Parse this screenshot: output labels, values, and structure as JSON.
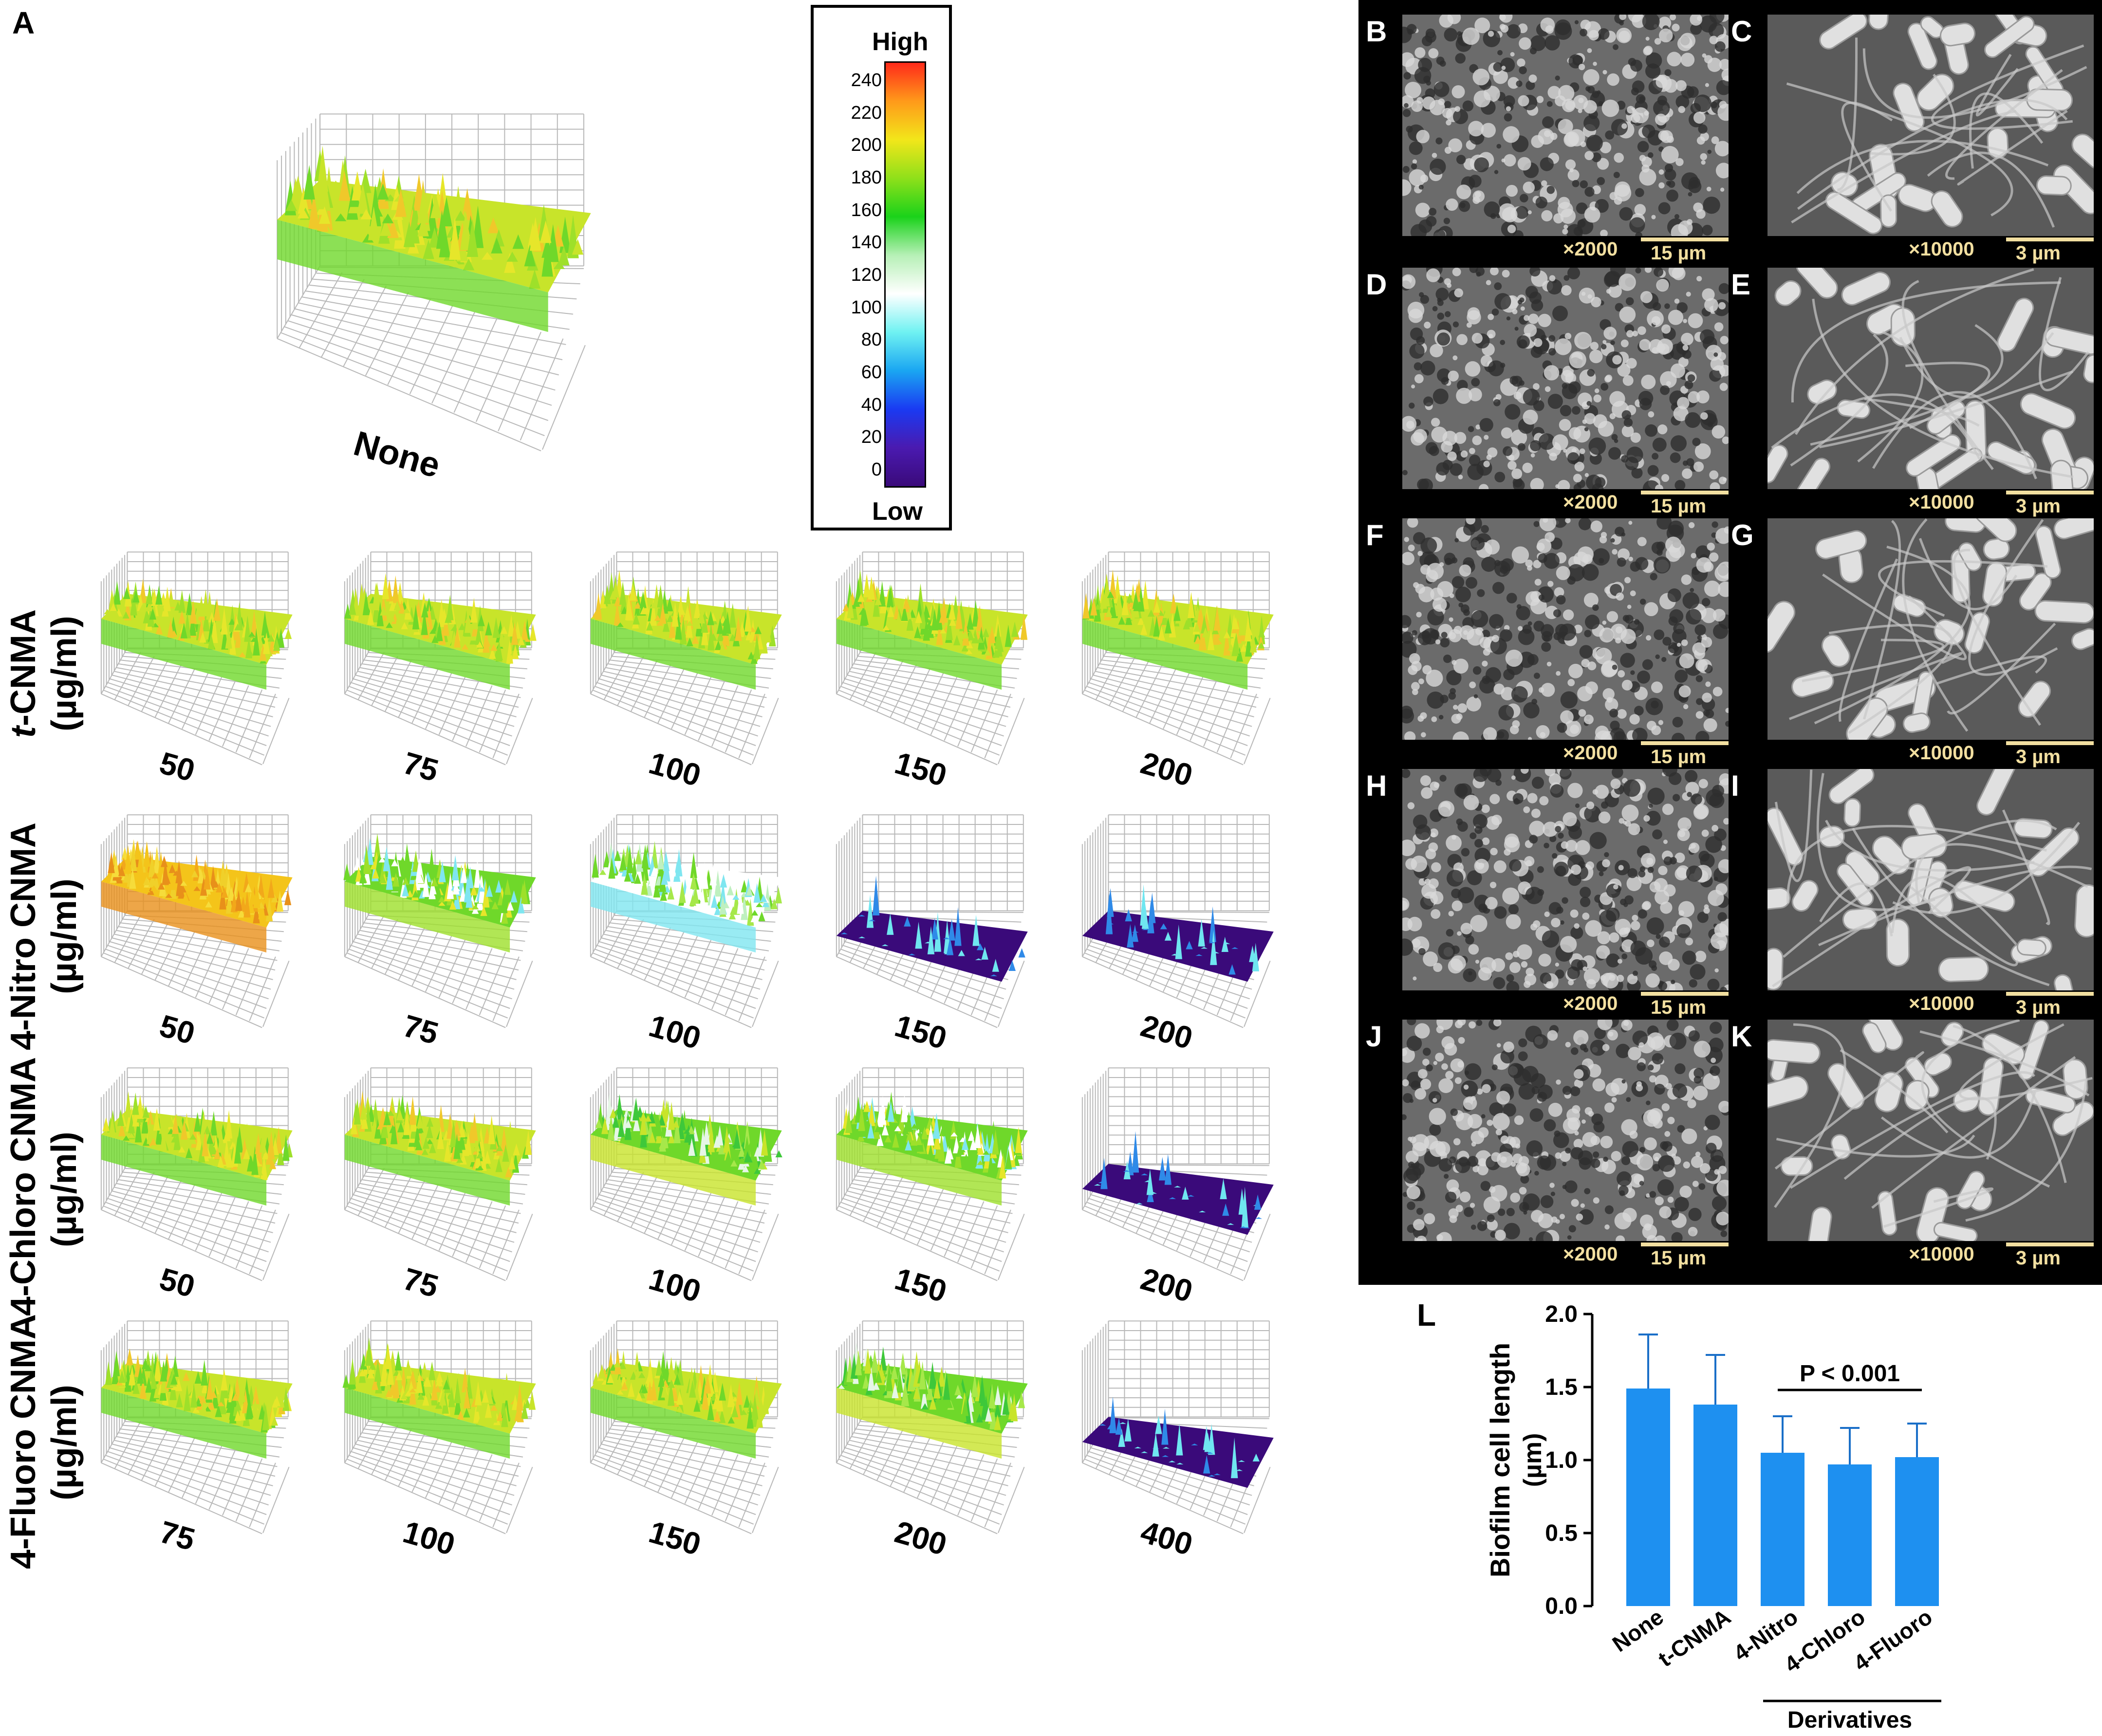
{
  "panel_a": {
    "letter": "A",
    "none_label": "None",
    "rows": [
      {
        "compound": "t-CNMA",
        "compound_italic": "t",
        "compound_rest": "-CNMA",
        "unit": "(µg/ml)",
        "concentrations": [
          "50",
          "75",
          "100",
          "150",
          "200"
        ],
        "levels": [
          "high",
          "high",
          "high",
          "high",
          "high"
        ]
      },
      {
        "compound": "4-Nitro CNMA",
        "compound_italic": "",
        "compound_rest": "4-Nitro CNMA",
        "unit": "(µg/ml)",
        "concentrations": [
          "50",
          "75",
          "100",
          "150",
          "200"
        ],
        "levels": [
          "veryhigh",
          "mid",
          "midlow",
          "low",
          "low"
        ]
      },
      {
        "compound": "4-Chloro CNMA",
        "compound_italic": "",
        "compound_rest": "4-Chloro CNMA",
        "unit": "(µg/ml)",
        "concentrations": [
          "50",
          "75",
          "100",
          "150",
          "200"
        ],
        "levels": [
          "high",
          "high",
          "midhigh",
          "mid",
          "low"
        ]
      },
      {
        "compound": "4-Fluoro CNMA",
        "compound_italic": "",
        "compound_rest": "4-Fluoro CNMA",
        "unit": "(µg/ml)",
        "concentrations": [
          "75",
          "100",
          "150",
          "200",
          "400"
        ],
        "levels": [
          "high",
          "high",
          "high",
          "midhigh",
          "low"
        ]
      }
    ]
  },
  "colorbar": {
    "high_label": "High",
    "low_label": "Low",
    "ticks": [
      "240",
      "220",
      "200",
      "180",
      "160",
      "140",
      "120",
      "100",
      "80",
      "60",
      "40",
      "20",
      "0"
    ],
    "gradient": [
      "#ff2a1a",
      "#ff9a1a",
      "#f2e61a",
      "#8fe01a",
      "#1ad21a",
      "#b6f0b6",
      "#ffffff",
      "#6ff2f2",
      "#1aa6f2",
      "#1a3af2",
      "#4a1ab0",
      "#3a0a7a"
    ]
  },
  "sem_panels": [
    {
      "letter": "B",
      "mag": "×2000",
      "scale": "15 µm",
      "kind": "low"
    },
    {
      "letter": "C",
      "mag": "×10000",
      "scale": "3 µm",
      "kind": "high"
    },
    {
      "letter": "D",
      "mag": "×2000",
      "scale": "15 µm",
      "kind": "low"
    },
    {
      "letter": "E",
      "mag": "×10000",
      "scale": "3 µm",
      "kind": "high"
    },
    {
      "letter": "F",
      "mag": "×2000",
      "scale": "15 µm",
      "kind": "low"
    },
    {
      "letter": "G",
      "mag": "×10000",
      "scale": "3 µm",
      "kind": "high"
    },
    {
      "letter": "H",
      "mag": "×2000",
      "scale": "15 µm",
      "kind": "low"
    },
    {
      "letter": "I",
      "mag": "×10000",
      "scale": "3 µm",
      "kind": "high"
    },
    {
      "letter": "J",
      "mag": "×2000",
      "scale": "15 µm",
      "kind": "low"
    },
    {
      "letter": "K",
      "mag": "×10000",
      "scale": "3 µm",
      "kind": "high"
    }
  ],
  "chart_data": {
    "type": "bar",
    "panel_letter": "L",
    "categories": [
      "None",
      "t-CNMA",
      "4-Nitro",
      "4-Chloro",
      "4-Fluoro"
    ],
    "values": [
      1.49,
      1.38,
      1.05,
      0.97,
      1.02
    ],
    "errors": [
      0.37,
      0.34,
      0.25,
      0.25,
      0.23
    ],
    "ylabel_line1": "Biofilm cell length",
    "ylabel_line2": "(µm)",
    "ylim": [
      0,
      2.0
    ],
    "yticks": [
      "0.0",
      "0.5",
      "1.0",
      "1.5",
      "2.0"
    ],
    "annotation": "P < 0.001",
    "group_label": "Derivatives",
    "bar_color": "#1e90f0"
  }
}
